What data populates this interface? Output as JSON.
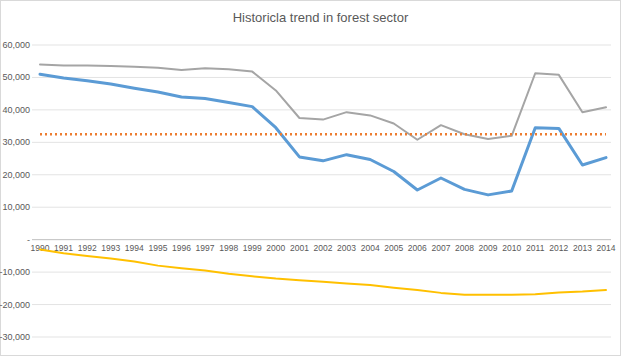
{
  "chart_data": {
    "type": "line",
    "title": "Historicla trend in forest sector",
    "categories": [
      "1990",
      "1991",
      "1992",
      "1993",
      "1994",
      "1995",
      "1996",
      "1997",
      "1998",
      "1999",
      "2000",
      "2001",
      "2002",
      "2003",
      "2004",
      "2005",
      "2006",
      "2007",
      "2008",
      "2009",
      "2010",
      "2011",
      "2012",
      "2013",
      "2014"
    ],
    "series": [
      {
        "color": "#a5a5a5",
        "line_style": "solid",
        "values": [
          54000,
          53700,
          53700,
          53500,
          53300,
          53000,
          52300,
          52800,
          52500,
          51800,
          46000,
          37500,
          37000,
          39300,
          38300,
          35800,
          30800,
          35300,
          32500,
          31000,
          32000,
          51300,
          50800,
          39300,
          40800
        ]
      },
      {
        "color": "#5b9bd5",
        "line_style": "solid",
        "values": [
          51000,
          49800,
          49000,
          48000,
          46700,
          45500,
          44000,
          43500,
          42300,
          41000,
          34500,
          25500,
          24300,
          26200,
          24700,
          21000,
          15300,
          19000,
          15500,
          13800,
          15000,
          34500,
          34300,
          23000,
          25300
        ]
      },
      {
        "color": "#ed7d31",
        "line_style": "dotted",
        "values": [
          32500,
          32500,
          32500,
          32500,
          32500,
          32500,
          32500,
          32500,
          32500,
          32500,
          32500,
          32500,
          32500,
          32500,
          32500,
          32500,
          32500,
          32500,
          32500,
          32500,
          32500,
          32500,
          32500,
          32500,
          32500
        ]
      },
      {
        "color": "#ffc000",
        "line_style": "solid",
        "values": [
          -3000,
          -4200,
          -5000,
          -5800,
          -6700,
          -8000,
          -8800,
          -9500,
          -10500,
          -11300,
          -12000,
          -12500,
          -13000,
          -13500,
          -14000,
          -14800,
          -15500,
          -16400,
          -17000,
          -17000,
          -17000,
          -16800,
          -16300,
          -16000,
          -15500
        ]
      }
    ],
    "ylim": [
      -30000,
      60000
    ],
    "yticks": [
      {
        "value": -30000,
        "label": "-30,000"
      },
      {
        "value": -20000,
        "label": "-20,000"
      },
      {
        "value": -10000,
        "label": "-10,000"
      },
      {
        "value": 0,
        "label": "-"
      },
      {
        "value": 10000,
        "label": "10,000"
      },
      {
        "value": 20000,
        "label": "20,000"
      },
      {
        "value": 30000,
        "label": "30,000"
      },
      {
        "value": 40000,
        "label": "40,000"
      },
      {
        "value": 50000,
        "label": "50,000"
      },
      {
        "value": 60000,
        "label": "60,000"
      }
    ],
    "grid": true
  }
}
